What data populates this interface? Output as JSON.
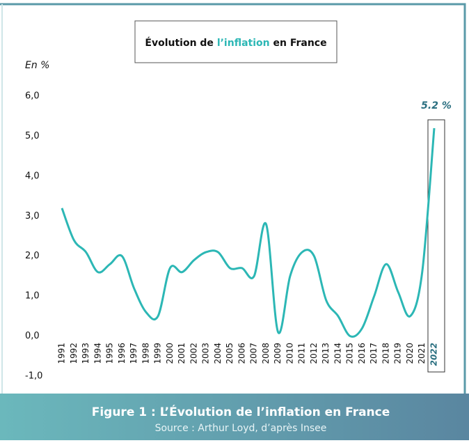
{
  "chart_data": {
    "type": "line",
    "title_parts": [
      "Évolution de ",
      "l’inflation",
      " en France"
    ],
    "y_label": "En %",
    "annotation": "5.2 %",
    "caption": "Figure 1 : L’Évolution de l’inflation en France",
    "source": "Source : Arthur Loyd, d’après Insee",
    "categories": [
      "1991",
      "1992",
      "1993",
      "1994",
      "1995",
      "1996",
      "1997",
      "1998",
      "1999",
      "2000",
      "2001",
      "2002",
      "2003",
      "2004",
      "2005",
      "2006",
      "2007",
      "2008",
      "2009",
      "2010",
      "2011",
      "2012",
      "2013",
      "2014",
      "2015",
      "2016",
      "2017",
      "2018",
      "2019",
      "2020",
      "2021",
      "2022"
    ],
    "series": [
      {
        "name": "Inflation",
        "color": "#2cb7b5",
        "values": [
          3.2,
          2.4,
          2.1,
          1.6,
          1.8,
          2.0,
          1.2,
          0.6,
          0.5,
          1.7,
          1.6,
          1.9,
          2.1,
          2.1,
          1.7,
          1.7,
          1.5,
          2.8,
          0.1,
          1.5,
          2.1,
          2.0,
          0.9,
          0.5,
          0.0,
          0.2,
          1.0,
          1.8,
          1.1,
          0.5,
          1.6,
          5.2
        ]
      }
    ],
    "ylim": [
      -1,
      6
    ],
    "yticks": [
      {
        "value": -1,
        "label": "-1,0"
      },
      {
        "value": 0,
        "label": "0,0"
      },
      {
        "value": 1,
        "label": "1,0"
      },
      {
        "value": 2,
        "label": "2,0"
      },
      {
        "value": 3,
        "label": "3,0"
      },
      {
        "value": 4,
        "label": "4,0"
      },
      {
        "value": 5,
        "label": "5,0"
      },
      {
        "value": 6,
        "label": "6,0"
      }
    ]
  }
}
